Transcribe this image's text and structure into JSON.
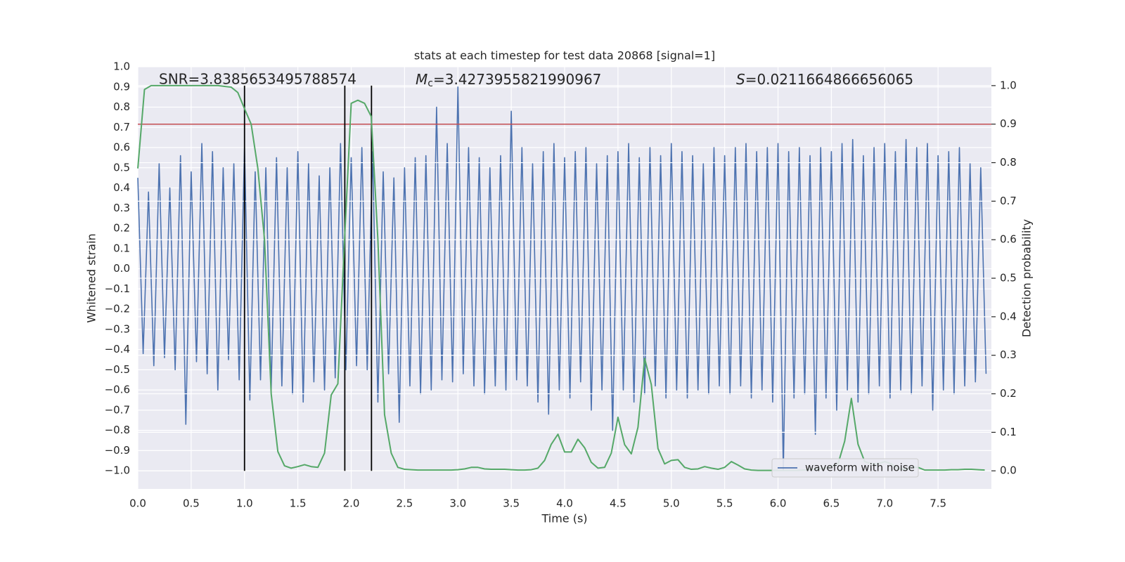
{
  "chart_data": {
    "type": "line",
    "title": "stats at each timestep for test data 20868 [signal=1]",
    "xlabel": "Time (s)",
    "ylabel": "Whitened strain",
    "y2label": "Detection probability",
    "annotations": [
      {
        "text": "SNR=3.8385653495788574"
      },
      {
        "symbol": "M",
        "sub": "c",
        "text": "=3.4273955821990967"
      },
      {
        "symbol": "S",
        "text": "=0.0211664866656065"
      }
    ],
    "xlim": [
      0,
      8
    ],
    "ylim": [
      -1.09,
      1.0
    ],
    "y2lim": [
      -0.047,
      1.049
    ],
    "xticks": [
      {
        "value": 0,
        "label": "0.0"
      },
      0.5,
      {
        "value": 1,
        "label": "1.0"
      },
      1.5,
      {
        "value": 2,
        "label": "2.0"
      },
      2.5,
      {
        "value": 3,
        "label": "3.0"
      },
      3.5,
      {
        "value": 4,
        "label": "4.0"
      },
      4.5,
      {
        "value": 5,
        "label": "5.0"
      },
      5.5,
      {
        "value": 6,
        "label": "6.0"
      },
      6.5,
      {
        "value": 7,
        "label": "7.0"
      },
      7.5
    ],
    "yticks": [
      {
        "value": -1,
        "label": "−1.0"
      },
      {
        "value": -0.9,
        "label": "−0.9"
      },
      {
        "value": -0.8,
        "label": "−0.8"
      },
      {
        "value": -0.7,
        "label": "−0.7"
      },
      {
        "value": -0.6,
        "label": "−0.6"
      },
      {
        "value": -0.5,
        "label": "−0.5"
      },
      {
        "value": -0.4,
        "label": "−0.4"
      },
      {
        "value": -0.3,
        "label": "−0.3"
      },
      {
        "value": -0.2,
        "label": "−0.2"
      },
      {
        "value": -0.1,
        "label": "−0.1"
      },
      {
        "value": 0,
        "label": "0.0"
      },
      0.1,
      0.2,
      0.3,
      0.4,
      0.5,
      0.6,
      0.7,
      0.8,
      0.9,
      {
        "value": 1,
        "label": "1.0"
      }
    ],
    "y2ticks": [
      {
        "value": 0,
        "label": "0.0"
      },
      0.1,
      0.2,
      0.3,
      0.4,
      0.5,
      0.6,
      0.7,
      0.8,
      0.9,
      {
        "value": 1,
        "label": "1.0"
      }
    ],
    "grid": true,
    "legend": "lower right",
    "series": [
      {
        "name": "waveform with noise",
        "color": "#4c72b0",
        "x": [
          0,
          0.05,
          0.1,
          0.15,
          0.2,
          0.25,
          0.3,
          0.35,
          0.4,
          0.45,
          0.5,
          0.55,
          0.6,
          0.65,
          0.7,
          0.75,
          0.8,
          0.85,
          0.9,
          0.95,
          1,
          1.05,
          1.1,
          1.15,
          1.2,
          1.25,
          1.3,
          1.35,
          1.4,
          1.45,
          1.5,
          1.55,
          1.6,
          1.65,
          1.7,
          1.75,
          1.8,
          1.85,
          1.9,
          1.95,
          2,
          2.05,
          2.1,
          2.15,
          2.2,
          2.25,
          2.3,
          2.35,
          2.4,
          2.45,
          2.5,
          2.55,
          2.6,
          2.65,
          2.7,
          2.75,
          2.8,
          2.85,
          2.9,
          2.95,
          3,
          3.05,
          3.1,
          3.15,
          3.2,
          3.25,
          3.3,
          3.35,
          3.4,
          3.45,
          3.5,
          3.55,
          3.6,
          3.65,
          3.7,
          3.75,
          3.8,
          3.85,
          3.9,
          3.95,
          4,
          4.05,
          4.1,
          4.15,
          4.2,
          4.25,
          4.3,
          4.35,
          4.4,
          4.45,
          4.5,
          4.55,
          4.6,
          4.65,
          4.7,
          4.75,
          4.8,
          4.85,
          4.9,
          4.95,
          5,
          5.05,
          5.1,
          5.15,
          5.2,
          5.25,
          5.3,
          5.35,
          5.4,
          5.45,
          5.5,
          5.55,
          5.6,
          5.65,
          5.7,
          5.75,
          5.8,
          5.85,
          5.9,
          5.95,
          6,
          6.05,
          6.1,
          6.15,
          6.2,
          6.25,
          6.3,
          6.35,
          6.4,
          6.45,
          6.5,
          6.55,
          6.6,
          6.65,
          6.7,
          6.75,
          6.8,
          6.85,
          6.9,
          6.95,
          7,
          7.05,
          7.1,
          7.15,
          7.2,
          7.25,
          7.3,
          7.35,
          7.4,
          7.45,
          7.5,
          7.55,
          7.6,
          7.65,
          7.7,
          7.75,
          7.8,
          7.85,
          7.9,
          7.95
        ],
        "values": [
          0.45,
          -0.42,
          0.38,
          -0.48,
          0.52,
          -0.44,
          0.4,
          -0.5,
          0.56,
          -0.77,
          0.48,
          -0.46,
          0.62,
          -0.52,
          0.58,
          -0.6,
          0.5,
          -0.45,
          0.52,
          -0.55,
          0.6,
          -0.65,
          0.48,
          -0.55,
          0.5,
          -0.6,
          0.55,
          -0.58,
          0.5,
          -0.62,
          0.58,
          -0.66,
          0.52,
          -0.56,
          0.46,
          -0.6,
          0.5,
          -0.54,
          0.62,
          -0.5,
          0.55,
          -0.48,
          0.6,
          -0.5,
          0.58,
          -0.66,
          0.48,
          -0.52,
          0.45,
          -0.76,
          0.5,
          -0.58,
          0.55,
          -0.62,
          0.56,
          -0.6,
          0.8,
          -0.55,
          0.62,
          -0.56,
          0.9,
          -0.52,
          0.6,
          -0.58,
          0.55,
          -0.62,
          0.5,
          -0.58,
          0.56,
          -0.6,
          0.78,
          -0.55,
          0.6,
          -0.58,
          0.52,
          -0.66,
          0.58,
          -0.72,
          0.62,
          -0.6,
          0.55,
          -0.64,
          0.58,
          -0.56,
          0.6,
          -0.7,
          0.52,
          -0.6,
          0.56,
          -0.8,
          0.58,
          -0.6,
          0.62,
          -0.66,
          0.55,
          -0.62,
          0.6,
          -0.58,
          0.56,
          -0.64,
          0.62,
          -0.6,
          0.58,
          -0.64,
          0.56,
          -0.6,
          0.52,
          -0.62,
          0.6,
          -0.58,
          0.56,
          -0.62,
          0.6,
          -0.58,
          0.62,
          -0.64,
          0.58,
          -0.6,
          0.6,
          -0.66,
          0.62,
          -1.0,
          0.58,
          -0.64,
          0.6,
          -0.62,
          0.56,
          -0.82,
          0.6,
          -0.64,
          0.58,
          -0.7,
          0.62,
          -0.6,
          0.64,
          -0.66,
          0.56,
          -0.62,
          0.6,
          -0.58,
          0.62,
          -0.64,
          0.58,
          -0.6,
          0.64,
          -0.62,
          0.6,
          -0.58,
          0.62,
          -0.7,
          0.56,
          -0.6,
          0.58,
          -0.62,
          0.6,
          -0.58,
          0.52,
          -0.56,
          0.5,
          -0.52
        ]
      }
    ],
    "probability": {
      "color": "#55a868",
      "axis": "y2",
      "x": [
        0,
        0.0625,
        0.125,
        0.1875,
        0.25,
        0.3125,
        0.375,
        0.4375,
        0.5,
        0.5625,
        0.625,
        0.6875,
        0.75,
        0.8125,
        0.875,
        0.9375,
        1,
        1.0625,
        1.125,
        1.1875,
        1.25,
        1.3125,
        1.375,
        1.4375,
        1.5,
        1.5625,
        1.625,
        1.6875,
        1.75,
        1.8125,
        1.875,
        1.9375,
        2,
        2.0625,
        2.125,
        2.1875,
        2.25,
        2.3125,
        2.375,
        2.4375,
        2.5,
        2.5625,
        2.625,
        2.6875,
        2.75,
        2.8125,
        2.875,
        2.9375,
        3,
        3.0625,
        3.125,
        3.1875,
        3.25,
        3.3125,
        3.375,
        3.4375,
        3.5,
        3.5625,
        3.625,
        3.6875,
        3.75,
        3.8125,
        3.875,
        3.9375,
        4,
        4.0625,
        4.125,
        4.1875,
        4.25,
        4.3125,
        4.375,
        4.4375,
        4.5,
        4.5625,
        4.625,
        4.6875,
        4.75,
        4.8125,
        4.875,
        4.9375,
        5,
        5.0625,
        5.125,
        5.1875,
        5.25,
        5.3125,
        5.375,
        5.4375,
        5.5,
        5.5625,
        5.625,
        5.6875,
        5.75,
        5.8125,
        5.875,
        5.9375,
        6,
        6.0625,
        6.125,
        6.1875,
        6.25,
        6.3125,
        6.375,
        6.4375,
        6.5,
        6.5625,
        6.625,
        6.6875,
        6.75,
        6.8125,
        6.875,
        6.9375,
        7,
        7.0625,
        7.125,
        7.1875,
        7.25,
        7.3125,
        7.375,
        7.4375,
        7.5,
        7.5625,
        7.625,
        7.6875,
        7.75,
        7.8125,
        7.875,
        7.9375
      ],
      "values": [
        0.785,
        0.99,
        1.0,
        1.0,
        1.0,
        1.0,
        1.0,
        1.0,
        1.0,
        1.0,
        1.0,
        1.0,
        1.0,
        0.998,
        0.996,
        0.982,
        0.94,
        0.9,
        0.785,
        0.6,
        0.2,
        0.05,
        0.013,
        0.007,
        0.011,
        0.016,
        0.011,
        0.009,
        0.046,
        0.197,
        0.226,
        0.6,
        0.954,
        0.962,
        0.954,
        0.92,
        0.6,
        0.146,
        0.046,
        0.009,
        0.004,
        0.003,
        0.002,
        0.002,
        0.002,
        0.002,
        0.002,
        0.002,
        0.003,
        0.005,
        0.009,
        0.009,
        0.005,
        0.004,
        0.004,
        0.004,
        0.003,
        0.002,
        0.002,
        0.003,
        0.007,
        0.027,
        0.069,
        0.095,
        0.049,
        0.049,
        0.082,
        0.06,
        0.022,
        0.007,
        0.009,
        0.046,
        0.139,
        0.068,
        0.044,
        0.113,
        0.292,
        0.224,
        0.058,
        0.018,
        0.027,
        0.029,
        0.009,
        0.004,
        0.005,
        0.011,
        0.007,
        0.004,
        0.009,
        0.024,
        0.015,
        0.005,
        0.002,
        0.001,
        0.001,
        0.001,
        0.001,
        0.001,
        0.001,
        0.001,
        0.002,
        0.004,
        0.005,
        0.007,
        0.011,
        0.018,
        0.077,
        0.188,
        0.069,
        0.024,
        0.018,
        0.018,
        0.024,
        0.018,
        0.005,
        0.004,
        0.009,
        0.009,
        0.002,
        0.002,
        0.002,
        0.002,
        0.003,
        0.003,
        0.004,
        0.004,
        0.003,
        0.002
      ]
    },
    "vlines": {
      "x": [
        1.0,
        1.94,
        2.19
      ],
      "range": [
        0,
        1
      ],
      "color": "#000000",
      "axis": "y2"
    },
    "hline": {
      "value": 0.9,
      "color": "#c44e52",
      "axis": "y2"
    }
  }
}
